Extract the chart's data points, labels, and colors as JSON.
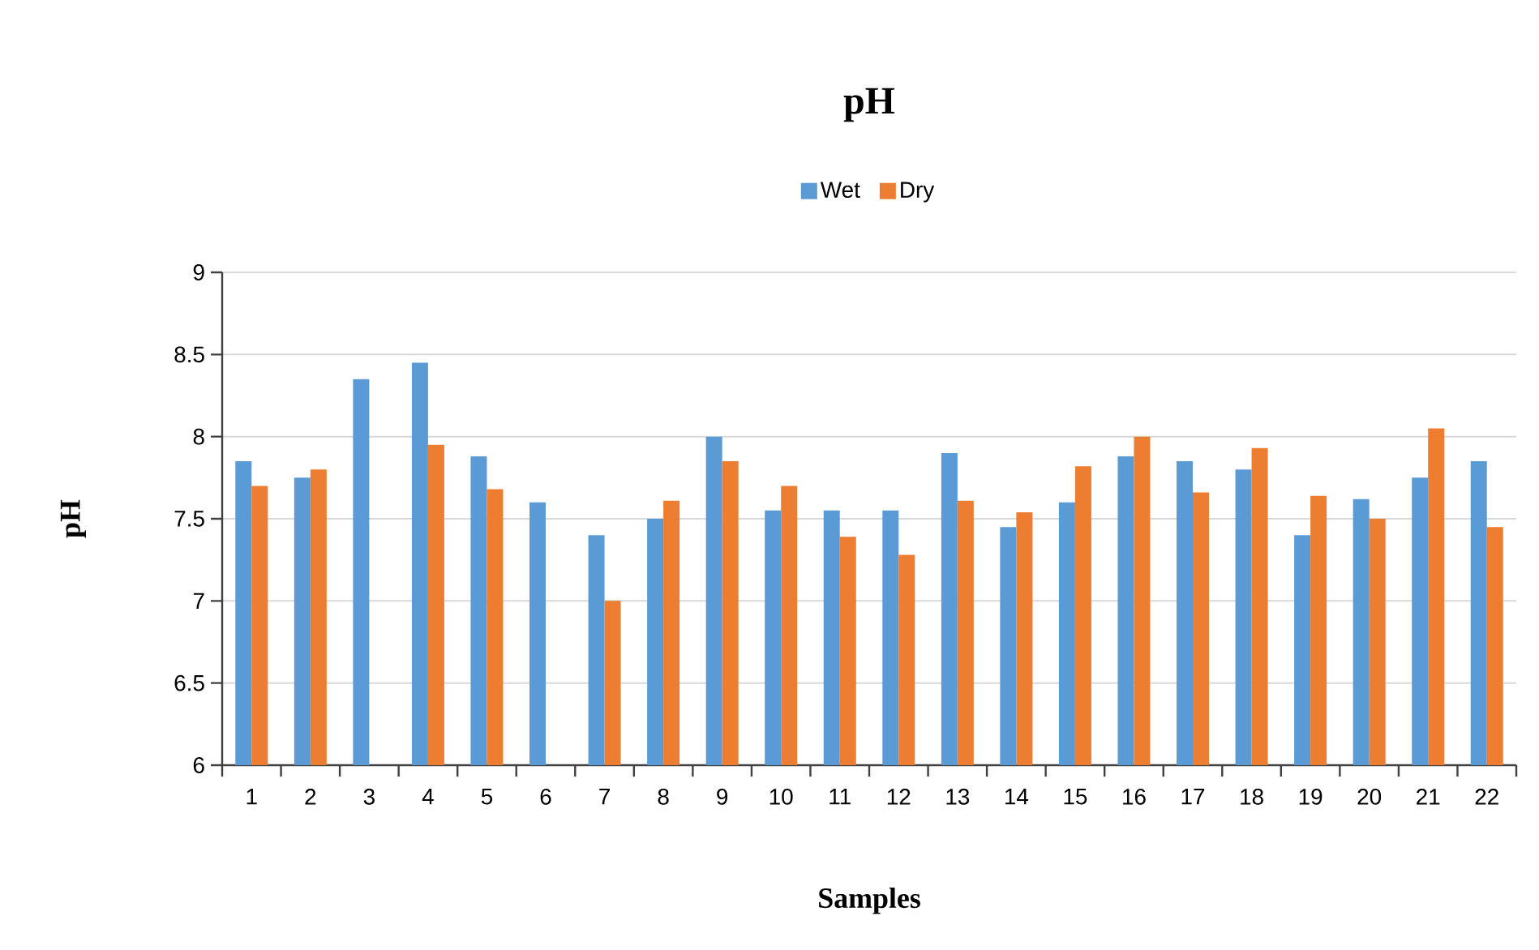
{
  "chart_data": {
    "type": "bar",
    "title": "pH",
    "xlabel": "Samples",
    "ylabel": "pH",
    "categories": [
      "1",
      "2",
      "3",
      "4",
      "5",
      "6",
      "7",
      "8",
      "9",
      "10",
      "11",
      "12",
      "13",
      "14",
      "15",
      "16",
      "17",
      "18",
      "19",
      "20",
      "21",
      "22"
    ],
    "series": [
      {
        "name": "Wet",
        "color": "#5b9bd5",
        "values": [
          7.85,
          7.75,
          8.35,
          8.45,
          7.88,
          7.6,
          7.4,
          7.5,
          8.0,
          7.55,
          7.55,
          7.55,
          7.9,
          7.45,
          7.6,
          7.88,
          7.85,
          7.8,
          7.4,
          7.62,
          7.75,
          7.85
        ]
      },
      {
        "name": "Dry",
        "color": "#ed7d31",
        "values": [
          7.7,
          7.8,
          null,
          7.95,
          7.68,
          null,
          7.0,
          7.61,
          7.85,
          7.7,
          7.39,
          7.28,
          7.61,
          7.54,
          7.82,
          8.0,
          7.66,
          7.93,
          7.64,
          7.5,
          8.05,
          7.45
        ]
      }
    ],
    "ylim": [
      6,
      9
    ],
    "yticks": [
      6,
      6.5,
      7,
      7.5,
      8,
      8.5,
      9
    ],
    "grid": "y",
    "legend": "top"
  }
}
